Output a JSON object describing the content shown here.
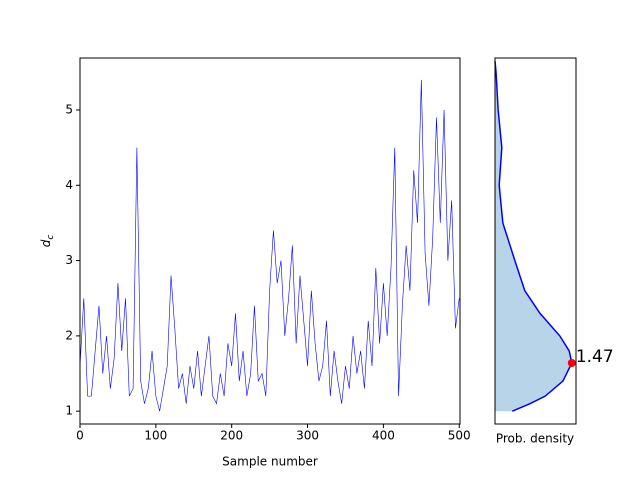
{
  "chart_data": {
    "type": "trace-density",
    "xlabel": "Sample number",
    "ylabel": {
      "main": "d",
      "sub": "c"
    },
    "density_xlabel": "Prob. density",
    "color": "#0000ff",
    "fill_color": "#b8d4e8",
    "marker_color": "#ff0000",
    "x": [
      0,
      5,
      10,
      15,
      20,
      25,
      30,
      35,
      40,
      45,
      50,
      55,
      60,
      65,
      70,
      75,
      80,
      85,
      90,
      95,
      100,
      105,
      110,
      115,
      120,
      125,
      130,
      135,
      140,
      145,
      150,
      155,
      160,
      165,
      170,
      175,
      180,
      185,
      190,
      195,
      200,
      205,
      210,
      215,
      220,
      225,
      230,
      235,
      240,
      245,
      250,
      255,
      260,
      265,
      270,
      275,
      280,
      285,
      290,
      295,
      300,
      305,
      310,
      315,
      320,
      325,
      330,
      335,
      340,
      345,
      350,
      355,
      360,
      365,
      370,
      375,
      380,
      385,
      390,
      395,
      400,
      405,
      410,
      415,
      420,
      425,
      430,
      435,
      440,
      445,
      450,
      455,
      460,
      465,
      470,
      475,
      480,
      485,
      490,
      495,
      500
    ],
    "values": [
      1.6,
      2.5,
      1.2,
      1.2,
      1.8,
      2.4,
      1.5,
      2.0,
      1.3,
      1.7,
      2.7,
      1.8,
      2.5,
      1.2,
      1.3,
      4.5,
      1.4,
      1.1,
      1.3,
      1.8,
      1.2,
      1.0,
      1.3,
      1.6,
      2.8,
      2.1,
      1.3,
      1.5,
      1.1,
      1.6,
      1.3,
      1.8,
      1.2,
      1.6,
      2.0,
      1.2,
      1.1,
      1.5,
      1.2,
      1.9,
      1.6,
      2.3,
      1.4,
      1.8,
      1.2,
      1.5,
      2.4,
      1.4,
      1.5,
      1.2,
      2.6,
      3.4,
      2.7,
      3.0,
      2.0,
      2.5,
      3.2,
      1.9,
      2.8,
      2.2,
      1.6,
      2.6,
      1.9,
      1.4,
      1.6,
      2.2,
      1.2,
      1.8,
      1.4,
      1.1,
      1.6,
      1.3,
      2.0,
      1.5,
      1.8,
      1.3,
      2.2,
      1.6,
      2.9,
      1.9,
      2.7,
      2.0,
      2.9,
      4.5,
      1.2,
      2.4,
      3.2,
      2.6,
      4.2,
      3.5,
      5.4,
      3.1,
      2.4,
      3.3,
      4.9,
      3.5,
      5.0,
      3.0,
      3.8,
      2.1,
      2.5
    ],
    "xlim": [
      0,
      501
    ],
    "ylim": [
      0.83,
      5.69
    ],
    "xticks": [
      0,
      100,
      200,
      300,
      400,
      500
    ],
    "yticks": [
      1,
      2,
      3,
      4,
      5
    ],
    "density": {
      "y": [
        1.0,
        1.1,
        1.2,
        1.4,
        1.64,
        1.8,
        2.0,
        2.3,
        2.6,
        3.0,
        3.5,
        4.0,
        4.5,
        5.0,
        5.5,
        5.65
      ],
      "values": [
        0.33,
        0.67,
        0.96,
        1.3,
        1.47,
        1.42,
        1.24,
        0.86,
        0.57,
        0.38,
        0.15,
        0.08,
        0.13,
        0.06,
        0.02,
        0.0
      ],
      "xlim": [
        0,
        1.55
      ]
    },
    "peak": {
      "y": 1.64,
      "density": 1.47
    }
  }
}
